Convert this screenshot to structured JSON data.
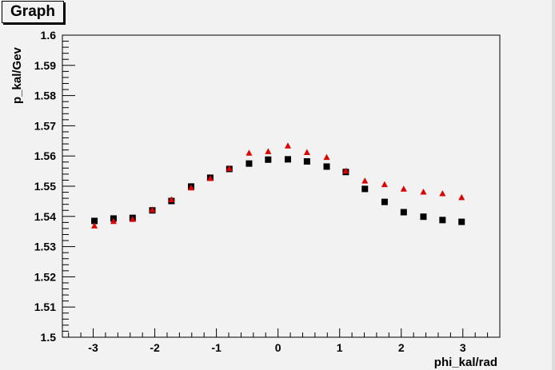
{
  "window": {
    "title": "Graph"
  },
  "chart_data": {
    "type": "scatter",
    "title": "Graph",
    "xlabel": "phi_kal/rad",
    "ylabel": "p_kal/Gev",
    "xlim": [
      -3.5,
      3.6
    ],
    "ylim": [
      1.5,
      1.6
    ],
    "xticks": [
      "-3",
      "-2",
      "-1",
      "0",
      "1",
      "2",
      "3"
    ],
    "yticks": [
      "1.5",
      "1.51",
      "1.52",
      "1.53",
      "1.54",
      "1.55",
      "1.56",
      "1.57",
      "1.58",
      "1.59",
      "1.6"
    ],
    "grid": false,
    "series": [
      {
        "marker": "square",
        "color": "#000000",
        "x": [
          -2.98,
          -2.67,
          -2.36,
          -2.04,
          -1.73,
          -1.41,
          -1.1,
          -0.79,
          -0.47,
          -0.16,
          0.16,
          0.47,
          0.79,
          1.1,
          1.41,
          1.73,
          2.04,
          2.36,
          2.67,
          2.98
        ],
        "y": [
          1.5385,
          1.5393,
          1.5395,
          1.542,
          1.5451,
          1.5499,
          1.5528,
          1.5557,
          1.5575,
          1.5588,
          1.5589,
          1.5582,
          1.5565,
          1.5547,
          1.5491,
          1.5448,
          1.5414,
          1.5399,
          1.5388,
          1.5382
        ]
      },
      {
        "marker": "triangle",
        "color": "#dd0000",
        "x": [
          -2.98,
          -2.67,
          -2.36,
          -2.04,
          -1.73,
          -1.41,
          -1.1,
          -0.79,
          -0.47,
          -0.16,
          0.16,
          0.47,
          0.79,
          1.1,
          1.41,
          1.73,
          2.04,
          2.36,
          2.67,
          2.98
        ],
        "y": [
          1.5368,
          1.5383,
          1.539,
          1.5421,
          1.5455,
          1.5494,
          1.5525,
          1.5558,
          1.5609,
          1.5614,
          1.5633,
          1.5611,
          1.5595,
          1.555,
          1.5517,
          1.5505,
          1.549,
          1.548,
          1.5475,
          1.5462
        ]
      }
    ]
  }
}
